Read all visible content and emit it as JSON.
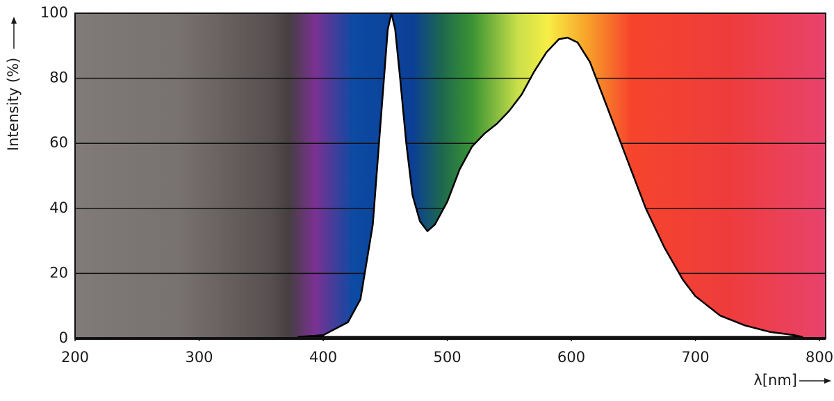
{
  "chart_data": {
    "type": "area",
    "x_label": "λ[nm]",
    "y_label": "Intensity (%)",
    "x": [
      380,
      400,
      420,
      430,
      440,
      447,
      452,
      455,
      458,
      462,
      467,
      472,
      478,
      484,
      490,
      500,
      510,
      520,
      530,
      540,
      550,
      560,
      570,
      580,
      590,
      597,
      605,
      615,
      625,
      640,
      650,
      660,
      675,
      690,
      700,
      720,
      740,
      760,
      780,
      786
    ],
    "values": [
      0.5,
      1,
      5,
      12,
      35,
      70,
      95,
      100,
      95,
      80,
      60,
      44,
      36,
      33,
      35,
      42,
      52,
      59,
      63,
      66,
      70,
      75,
      82,
      88,
      92,
      92.5,
      91,
      85,
      75,
      60,
      50,
      40,
      28,
      18,
      13,
      7,
      4,
      2,
      1,
      0.5
    ],
    "color": "#ffffff",
    "line_color": "#000000",
    "xlim": [
      200,
      805
    ],
    "ylim": [
      0,
      100
    ],
    "xticks": [
      200,
      300,
      400,
      500,
      600,
      700,
      800
    ],
    "yticks": [
      0,
      20,
      40,
      60,
      80,
      100
    ],
    "grid": true
  }
}
